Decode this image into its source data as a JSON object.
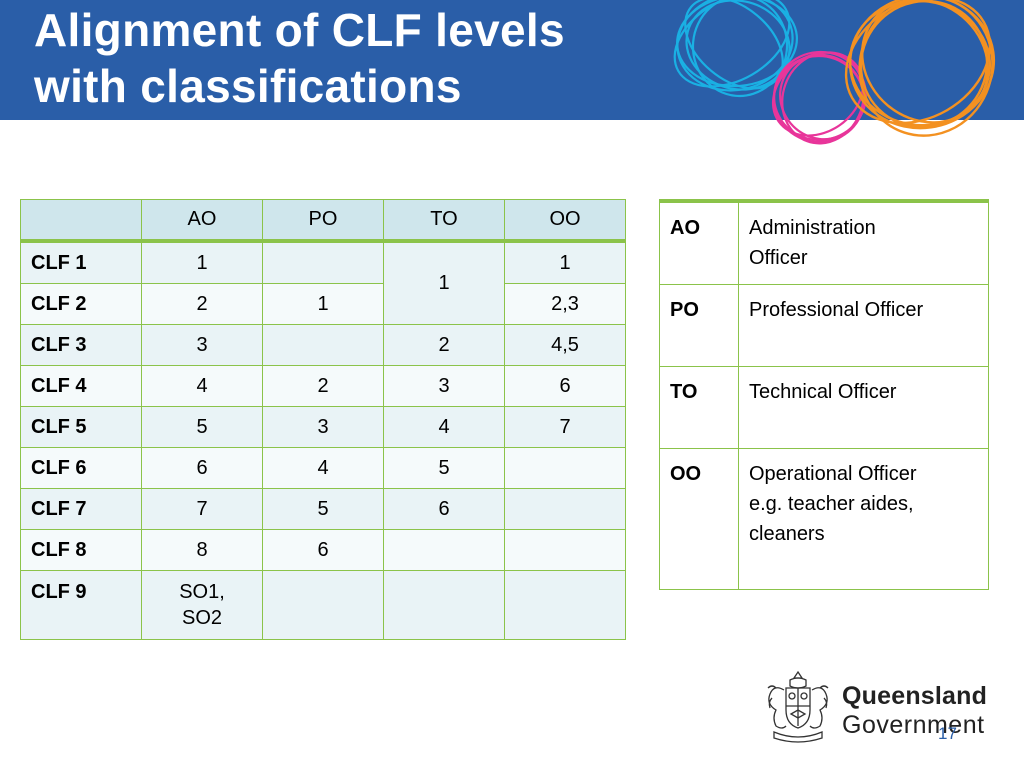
{
  "slide": {
    "title_line1": "Alignment of CLF levels",
    "title_line2": "with classifications",
    "page_number": "17"
  },
  "colors": {
    "banner": "#2a5ea8",
    "border": "#8bc34a",
    "header_fill": "#cfe6ec"
  },
  "table": {
    "headers": [
      "",
      "AO",
      "PO",
      "TO",
      "OO"
    ],
    "rows": [
      {
        "level": "CLF 1",
        "ao": "1",
        "po": "",
        "to": "1",
        "oo": "1"
      },
      {
        "level": "CLF 2",
        "ao": "2",
        "po": "1",
        "oo": "2,3"
      },
      {
        "level": "CLF 3",
        "ao": "3",
        "po": "",
        "to": "2",
        "oo": "4,5"
      },
      {
        "level": "CLF 4",
        "ao": "4",
        "po": "2",
        "to": "3",
        "oo": "6"
      },
      {
        "level": "CLF 5",
        "ao": "5",
        "po": "3",
        "to": "4",
        "oo": "7"
      },
      {
        "level": "CLF 6",
        "ao": "6",
        "po": "4",
        "to": "5",
        "oo": ""
      },
      {
        "level": "CLF 7",
        "ao": "7",
        "po": "5",
        "to": "6",
        "oo": ""
      },
      {
        "level": "CLF 8",
        "ao": "8",
        "po": "6",
        "to": "",
        "oo": ""
      },
      {
        "level": "CLF 9",
        "ao_line1": "SO1,",
        "ao_line2": "SO2",
        "po": "",
        "to": "",
        "oo": ""
      }
    ]
  },
  "legend": [
    {
      "abbr": "AO",
      "line1": "Administration",
      "line2": "Officer"
    },
    {
      "abbr": "PO",
      "line1": "Professional Officer"
    },
    {
      "abbr": "TO",
      "line1": "Technical Officer"
    },
    {
      "abbr": "OO",
      "line1": "Operational Officer",
      "line2": "e.g. teacher aides,",
      "line3": "cleaners"
    }
  ],
  "logo": {
    "line1": "Queensland",
    "line2": "Government",
    "icon": "queensland-crest-icon"
  }
}
